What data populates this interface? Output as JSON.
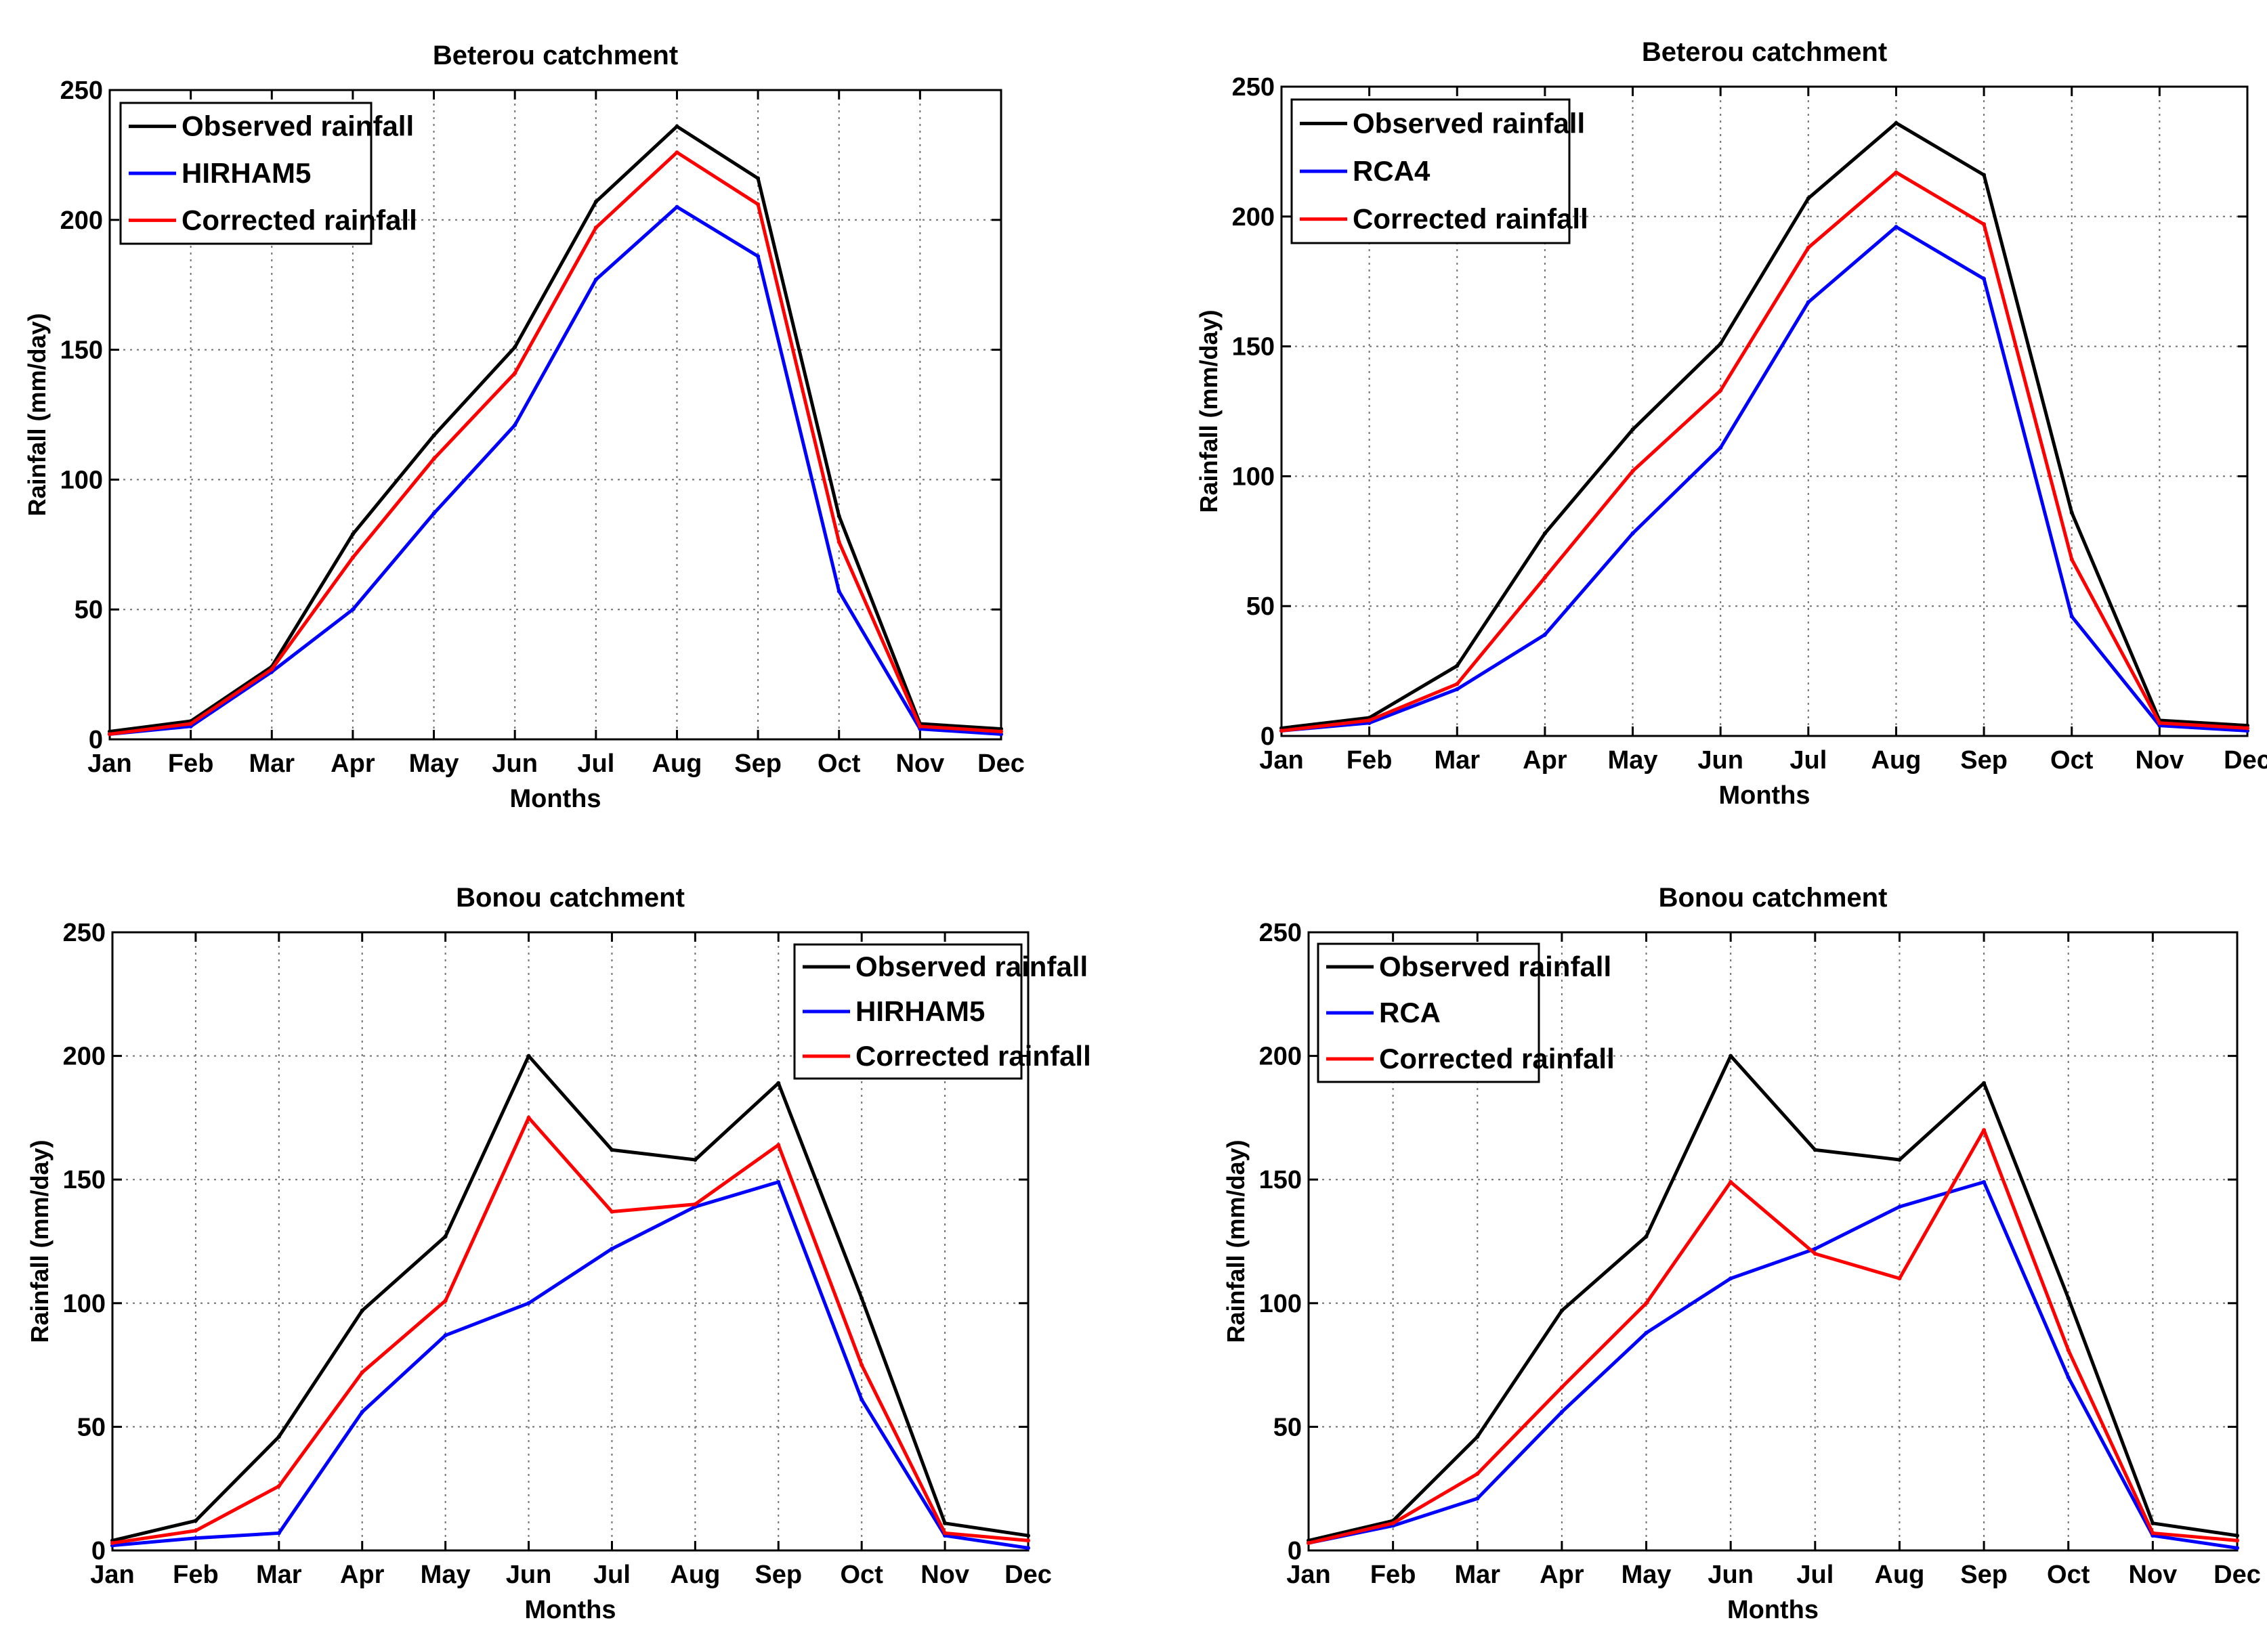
{
  "chart_data": [
    {
      "type": "line",
      "title": "Beterou catchment",
      "xlabel": "Months",
      "ylabel": "Rainfall (mm/day)",
      "ylim": [
        0,
        250
      ],
      "yticks": [
        0,
        50,
        100,
        150,
        200,
        250
      ],
      "grid": true,
      "legend_position": "top-left",
      "categories": [
        "Jan",
        "Feb",
        "Mar",
        "Apr",
        "May",
        "Jun",
        "Jul",
        "Aug",
        "Sep",
        "Oct",
        "Nov",
        "Dec"
      ],
      "series": [
        {
          "name": "Observed rainfall",
          "color": "#000000",
          "values": [
            3,
            7,
            28,
            79,
            117,
            151,
            207,
            236,
            216,
            86,
            6,
            4
          ]
        },
        {
          "name": "HIRHAM5",
          "color": "#0000ff",
          "values": [
            2,
            5,
            26,
            50,
            87,
            121,
            177,
            205,
            186,
            57,
            4,
            2
          ]
        },
        {
          "name": "Corrected rainfall",
          "color": "#ff0000",
          "values": [
            2,
            6,
            27,
            70,
            108,
            141,
            197,
            226,
            206,
            76,
            5,
            3
          ]
        }
      ]
    },
    {
      "type": "line",
      "title": "Beterou catchment",
      "xlabel": "Months",
      "ylabel": "Rainfall (mm/day)",
      "ylim": [
        0,
        250
      ],
      "yticks": [
        0,
        50,
        100,
        150,
        200,
        250
      ],
      "grid": true,
      "legend_position": "top-left",
      "categories": [
        "Jan",
        "Feb",
        "Mar",
        "Apr",
        "May",
        "Jun",
        "Jul",
        "Aug",
        "Sep",
        "Oct",
        "Nov",
        "Dec"
      ],
      "series": [
        {
          "name": "Observed rainfall",
          "color": "#000000",
          "values": [
            3,
            7,
            27,
            78,
            118,
            151,
            207,
            236,
            216,
            86,
            6,
            4
          ]
        },
        {
          "name": "RCA4",
          "color": "#0000ff",
          "values": [
            2,
            5,
            18,
            39,
            78,
            111,
            167,
            196,
            176,
            46,
            4,
            2
          ]
        },
        {
          "name": "Corrected rainfall",
          "color": "#ff0000",
          "values": [
            2,
            6,
            20,
            61,
            102,
            133,
            188,
            217,
            197,
            68,
            5,
            3
          ]
        }
      ]
    },
    {
      "type": "line",
      "title": "Bonou catchment",
      "xlabel": "Months",
      "ylabel": "Rainfall (mm/day)",
      "ylim": [
        0,
        250
      ],
      "yticks": [
        0,
        50,
        100,
        150,
        200,
        250
      ],
      "grid": true,
      "legend_position": "top-right",
      "categories": [
        "Jan",
        "Feb",
        "Mar",
        "Apr",
        "May",
        "Jun",
        "Jul",
        "Aug",
        "Sep",
        "Oct",
        "Nov",
        "Dec"
      ],
      "series": [
        {
          "name": "Observed rainfall",
          "color": "#000000",
          "values": [
            4,
            12,
            46,
            97,
            127,
            200,
            162,
            158,
            189,
            102,
            11,
            6
          ]
        },
        {
          "name": "HIRHAM5",
          "color": "#0000ff",
          "values": [
            2,
            5,
            7,
            56,
            87,
            100,
            122,
            139,
            149,
            61,
            6,
            1
          ]
        },
        {
          "name": "Corrected rainfall",
          "color": "#ff0000",
          "values": [
            3,
            8,
            26,
            72,
            101,
            175,
            137,
            140,
            164,
            75,
            7,
            4
          ]
        }
      ]
    },
    {
      "type": "line",
      "title": "Bonou catchment",
      "xlabel": "Months",
      "ylabel": "Rainfall (mm/day)",
      "ylim": [
        0,
        250
      ],
      "yticks": [
        0,
        50,
        100,
        150,
        200,
        250
      ],
      "grid": true,
      "legend_position": "top-left",
      "categories": [
        "Jan",
        "Feb",
        "Mar",
        "Apr",
        "May",
        "Jun",
        "Jul",
        "Aug",
        "Sep",
        "Oct",
        "Nov",
        "Dec"
      ],
      "series": [
        {
          "name": "Observed rainfall",
          "color": "#000000",
          "values": [
            4,
            12,
            46,
            97,
            127,
            200,
            162,
            158,
            189,
            102,
            11,
            6
          ]
        },
        {
          "name": "RCA",
          "color": "#0000ff",
          "values": [
            3,
            10,
            21,
            56,
            88,
            110,
            122,
            139,
            149,
            70,
            6,
            1
          ]
        },
        {
          "name": "Corrected rainfall",
          "color": "#ff0000",
          "values": [
            3,
            11,
            31,
            66,
            100,
            149,
            120,
            110,
            170,
            81,
            7,
            4
          ]
        }
      ]
    }
  ]
}
